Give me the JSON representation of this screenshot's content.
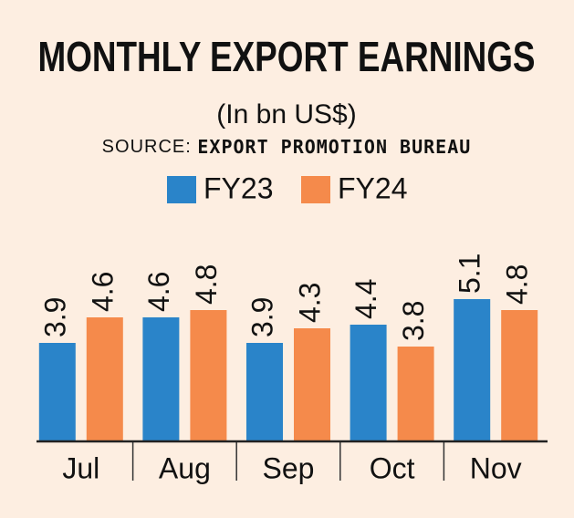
{
  "chart_data": {
    "type": "bar",
    "title": "MONTHLY EXPORT EARNINGS",
    "subtitle": "(In bn US$)",
    "source_label": "SOURCE:",
    "source": "EXPORT PROMOTION BUREAU",
    "categories": [
      "Jul",
      "Aug",
      "Sep",
      "Oct",
      "Nov"
    ],
    "series": [
      {
        "name": "FY23",
        "color": "#2a84c9",
        "values": [
          3.9,
          4.6,
          3.9,
          4.4,
          5.1
        ]
      },
      {
        "name": "FY24",
        "color": "#f58a4b",
        "values": [
          4.6,
          4.8,
          4.3,
          3.8,
          4.8
        ]
      }
    ],
    "ylim": [
      1.2,
      6
    ]
  }
}
